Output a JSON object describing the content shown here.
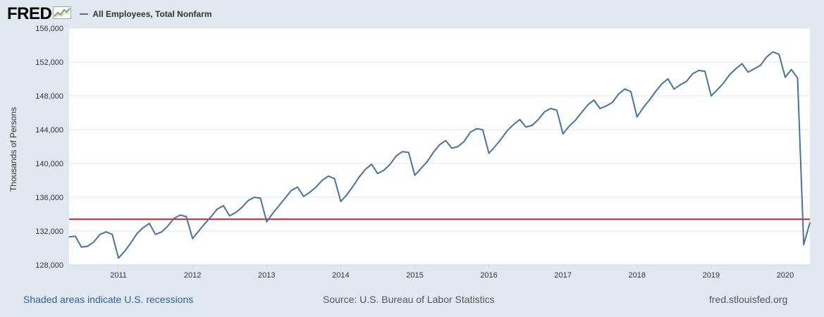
{
  "header": {
    "logo_text": "FRED",
    "logo_icon": "line-graph-icon"
  },
  "colors": {
    "background": "#e1e9f0",
    "plot_bg": "#ffffff",
    "series": "#4572a7",
    "reference_line": "#b5292b",
    "link": "#2a5fa8"
  },
  "footer": {
    "recession_note": "Shaded areas indicate U.S. recessions",
    "source": "Source: U.S. Bureau of Labor Statistics",
    "site": "fred.stlouisfed.org"
  },
  "chart_data": {
    "type": "line",
    "title": "",
    "ylabel": "Thousands of Persons",
    "xlabel": "",
    "ylim": [
      128000,
      156000
    ],
    "xlim": [
      "2010-05",
      "2020-05"
    ],
    "yticks": [
      128000,
      132000,
      136000,
      140000,
      144000,
      148000,
      152000,
      156000
    ],
    "ytick_labels": [
      "128,000",
      "132,000",
      "136,000",
      "140,000",
      "144,000",
      "148,000",
      "152,000",
      "156,000"
    ],
    "xticks": [
      "2011",
      "2012",
      "2013",
      "2014",
      "2015",
      "2016",
      "2017",
      "2018",
      "2019",
      "2020"
    ],
    "grid": true,
    "legend": "top-left",
    "reference_line": 133400,
    "series": [
      {
        "name": "All Employees, Total Nonfarm",
        "x": [
          "2010-05",
          "2010-06",
          "2010-07",
          "2010-08",
          "2010-09",
          "2010-10",
          "2010-11",
          "2010-12",
          "2011-01",
          "2011-02",
          "2011-03",
          "2011-04",
          "2011-05",
          "2011-06",
          "2011-07",
          "2011-08",
          "2011-09",
          "2011-10",
          "2011-11",
          "2011-12",
          "2012-01",
          "2012-02",
          "2012-03",
          "2012-04",
          "2012-05",
          "2012-06",
          "2012-07",
          "2012-08",
          "2012-09",
          "2012-10",
          "2012-11",
          "2012-12",
          "2013-01",
          "2013-02",
          "2013-03",
          "2013-04",
          "2013-05",
          "2013-06",
          "2013-07",
          "2013-08",
          "2013-09",
          "2013-10",
          "2013-11",
          "2013-12",
          "2014-01",
          "2014-02",
          "2014-03",
          "2014-04",
          "2014-05",
          "2014-06",
          "2014-07",
          "2014-08",
          "2014-09",
          "2014-10",
          "2014-11",
          "2014-12",
          "2015-01",
          "2015-02",
          "2015-03",
          "2015-04",
          "2015-05",
          "2015-06",
          "2015-07",
          "2015-08",
          "2015-09",
          "2015-10",
          "2015-11",
          "2015-12",
          "2016-01",
          "2016-02",
          "2016-03",
          "2016-04",
          "2016-05",
          "2016-06",
          "2016-07",
          "2016-08",
          "2016-09",
          "2016-10",
          "2016-11",
          "2016-12",
          "2017-01",
          "2017-02",
          "2017-03",
          "2017-04",
          "2017-05",
          "2017-06",
          "2017-07",
          "2017-08",
          "2017-09",
          "2017-10",
          "2017-11",
          "2017-12",
          "2018-01",
          "2018-02",
          "2018-03",
          "2018-04",
          "2018-05",
          "2018-06",
          "2018-07",
          "2018-08",
          "2018-09",
          "2018-10",
          "2018-11",
          "2018-12",
          "2019-01",
          "2019-02",
          "2019-03",
          "2019-04",
          "2019-05",
          "2019-06",
          "2019-07",
          "2019-08",
          "2019-09",
          "2019-10",
          "2019-11",
          "2019-12",
          "2020-01",
          "2020-02",
          "2020-03",
          "2020-04",
          "2020-05"
        ],
        "values": [
          131300,
          131400,
          130100,
          130200,
          130700,
          131600,
          131900,
          131600,
          128800,
          129600,
          130600,
          131700,
          132400,
          132900,
          131600,
          131900,
          132600,
          133500,
          133900,
          133700,
          131100,
          132000,
          132900,
          133700,
          134600,
          135000,
          133800,
          134200,
          134800,
          135600,
          136000,
          135900,
          133100,
          134100,
          135000,
          135900,
          136800,
          137200,
          136100,
          136600,
          137200,
          138000,
          138500,
          138200,
          135500,
          136300,
          137300,
          138400,
          139300,
          139900,
          138800,
          139200,
          139900,
          140900,
          141400,
          141300,
          138600,
          139400,
          140200,
          141300,
          142200,
          142700,
          141800,
          142000,
          142600,
          143700,
          144100,
          144000,
          141200,
          142000,
          142900,
          143900,
          144600,
          145200,
          144300,
          144500,
          145200,
          146100,
          146500,
          146300,
          143500,
          144400,
          145100,
          146000,
          146900,
          147500,
          146500,
          146800,
          147200,
          148200,
          148800,
          148500,
          145500,
          146600,
          147500,
          148500,
          149400,
          150000,
          148800,
          149300,
          149700,
          150600,
          151000,
          150900,
          148000,
          148700,
          149500,
          150500,
          151200,
          151800,
          150800,
          151200,
          151600,
          152600,
          153200,
          152900,
          150200,
          151100,
          150100,
          130400,
          133000
        ]
      }
    ]
  }
}
